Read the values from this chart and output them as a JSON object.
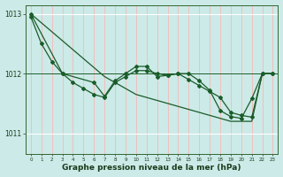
{
  "bg_color": "#cceae7",
  "line_color": "#1a5c2a",
  "grid_color_v": "#f5b8b8",
  "grid_color_h": "#ffffff",
  "xlabel": "Graphe pression niveau de la mer (hPa)",
  "xlabel_fontsize": 6.5,
  "ylim": [
    1010.65,
    1013.15
  ],
  "xlim": [
    -0.5,
    23.5
  ],
  "yticks": [
    1011,
    1012,
    1013
  ],
  "hline_y": 1012.0,
  "series1_x": [
    0,
    1,
    2,
    3,
    4,
    5,
    6,
    7,
    8,
    9,
    10,
    11,
    12,
    13,
    14,
    15,
    16,
    17,
    18,
    19,
    20,
    21,
    22,
    23
  ],
  "series1_y": [
    1013.0,
    1012.85,
    1012.7,
    1012.55,
    1012.4,
    1012.25,
    1012.1,
    1011.95,
    1011.85,
    1011.75,
    1011.65,
    1011.6,
    1011.55,
    1011.5,
    1011.45,
    1011.4,
    1011.35,
    1011.3,
    1011.25,
    1011.2,
    1011.2,
    1011.2,
    1012.0,
    1012.0
  ],
  "series2_x": [
    0,
    1,
    2,
    3,
    4,
    5,
    6,
    7,
    8,
    9,
    10,
    11,
    12,
    13,
    14,
    15,
    16,
    17,
    18,
    19,
    20,
    21,
    22,
    23
  ],
  "series2_y": [
    1012.95,
    1012.5,
    1012.2,
    1012.0,
    1011.85,
    1011.75,
    1011.65,
    1011.6,
    1011.85,
    1011.95,
    1012.05,
    1012.05,
    1012.0,
    1011.97,
    1012.0,
    1011.9,
    1011.8,
    1011.7,
    1011.6,
    1011.35,
    1011.3,
    1011.27,
    1012.0,
    1012.0
  ],
  "series3_x": [
    0,
    3,
    6,
    7,
    8,
    9,
    10,
    11,
    12,
    13,
    14,
    15,
    16,
    17,
    18,
    19,
    20,
    21,
    22,
    23
  ],
  "series3_y": [
    1013.0,
    1012.0,
    1011.85,
    1011.62,
    1011.88,
    1012.0,
    1012.12,
    1012.12,
    1011.95,
    1011.97,
    1012.0,
    1012.0,
    1011.88,
    1011.72,
    1011.38,
    1011.28,
    1011.25,
    1011.58,
    1012.0,
    1012.0
  ]
}
